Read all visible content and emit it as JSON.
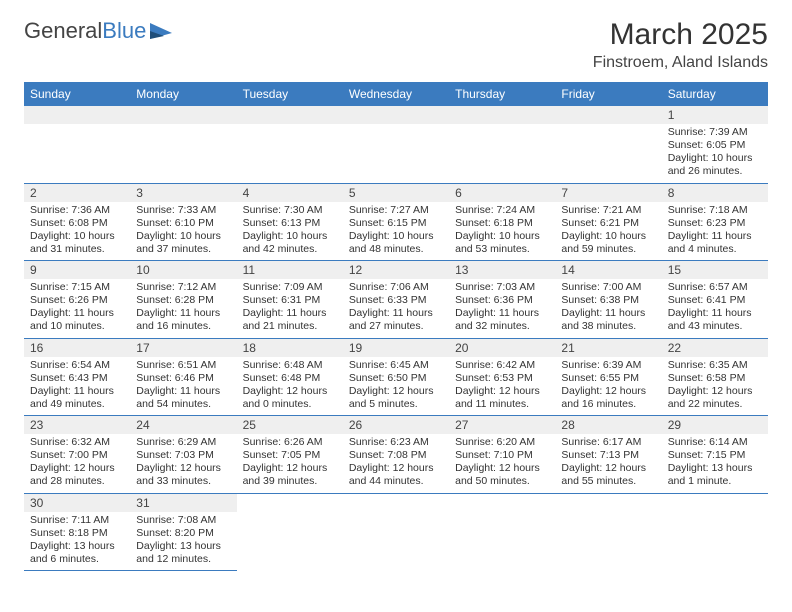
{
  "logo": {
    "text1": "General",
    "text2": "Blue"
  },
  "title": "March 2025",
  "location": "Finstroem, Aland Islands",
  "colors": {
    "accent": "#3b7bbf",
    "header_row_bg": "#efefef",
    "text": "#333333",
    "background": "#ffffff"
  },
  "weekdays": [
    "Sunday",
    "Monday",
    "Tuesday",
    "Wednesday",
    "Thursday",
    "Friday",
    "Saturday"
  ],
  "leading_blanks": 6,
  "days": [
    {
      "n": 1,
      "sunrise": "7:39 AM",
      "sunset": "6:05 PM",
      "daylight": "10 hours and 26 minutes."
    },
    {
      "n": 2,
      "sunrise": "7:36 AM",
      "sunset": "6:08 PM",
      "daylight": "10 hours and 31 minutes."
    },
    {
      "n": 3,
      "sunrise": "7:33 AM",
      "sunset": "6:10 PM",
      "daylight": "10 hours and 37 minutes."
    },
    {
      "n": 4,
      "sunrise": "7:30 AM",
      "sunset": "6:13 PM",
      "daylight": "10 hours and 42 minutes."
    },
    {
      "n": 5,
      "sunrise": "7:27 AM",
      "sunset": "6:15 PM",
      "daylight": "10 hours and 48 minutes."
    },
    {
      "n": 6,
      "sunrise": "7:24 AM",
      "sunset": "6:18 PM",
      "daylight": "10 hours and 53 minutes."
    },
    {
      "n": 7,
      "sunrise": "7:21 AM",
      "sunset": "6:21 PM",
      "daylight": "10 hours and 59 minutes."
    },
    {
      "n": 8,
      "sunrise": "7:18 AM",
      "sunset": "6:23 PM",
      "daylight": "11 hours and 4 minutes."
    },
    {
      "n": 9,
      "sunrise": "7:15 AM",
      "sunset": "6:26 PM",
      "daylight": "11 hours and 10 minutes."
    },
    {
      "n": 10,
      "sunrise": "7:12 AM",
      "sunset": "6:28 PM",
      "daylight": "11 hours and 16 minutes."
    },
    {
      "n": 11,
      "sunrise": "7:09 AM",
      "sunset": "6:31 PM",
      "daylight": "11 hours and 21 minutes."
    },
    {
      "n": 12,
      "sunrise": "7:06 AM",
      "sunset": "6:33 PM",
      "daylight": "11 hours and 27 minutes."
    },
    {
      "n": 13,
      "sunrise": "7:03 AM",
      "sunset": "6:36 PM",
      "daylight": "11 hours and 32 minutes."
    },
    {
      "n": 14,
      "sunrise": "7:00 AM",
      "sunset": "6:38 PM",
      "daylight": "11 hours and 38 minutes."
    },
    {
      "n": 15,
      "sunrise": "6:57 AM",
      "sunset": "6:41 PM",
      "daylight": "11 hours and 43 minutes."
    },
    {
      "n": 16,
      "sunrise": "6:54 AM",
      "sunset": "6:43 PM",
      "daylight": "11 hours and 49 minutes."
    },
    {
      "n": 17,
      "sunrise": "6:51 AM",
      "sunset": "6:46 PM",
      "daylight": "11 hours and 54 minutes."
    },
    {
      "n": 18,
      "sunrise": "6:48 AM",
      "sunset": "6:48 PM",
      "daylight": "12 hours and 0 minutes."
    },
    {
      "n": 19,
      "sunrise": "6:45 AM",
      "sunset": "6:50 PM",
      "daylight": "12 hours and 5 minutes."
    },
    {
      "n": 20,
      "sunrise": "6:42 AM",
      "sunset": "6:53 PM",
      "daylight": "12 hours and 11 minutes."
    },
    {
      "n": 21,
      "sunrise": "6:39 AM",
      "sunset": "6:55 PM",
      "daylight": "12 hours and 16 minutes."
    },
    {
      "n": 22,
      "sunrise": "6:35 AM",
      "sunset": "6:58 PM",
      "daylight": "12 hours and 22 minutes."
    },
    {
      "n": 23,
      "sunrise": "6:32 AM",
      "sunset": "7:00 PM",
      "daylight": "12 hours and 28 minutes."
    },
    {
      "n": 24,
      "sunrise": "6:29 AM",
      "sunset": "7:03 PM",
      "daylight": "12 hours and 33 minutes."
    },
    {
      "n": 25,
      "sunrise": "6:26 AM",
      "sunset": "7:05 PM",
      "daylight": "12 hours and 39 minutes."
    },
    {
      "n": 26,
      "sunrise": "6:23 AM",
      "sunset": "7:08 PM",
      "daylight": "12 hours and 44 minutes."
    },
    {
      "n": 27,
      "sunrise": "6:20 AM",
      "sunset": "7:10 PM",
      "daylight": "12 hours and 50 minutes."
    },
    {
      "n": 28,
      "sunrise": "6:17 AM",
      "sunset": "7:13 PM",
      "daylight": "12 hours and 55 minutes."
    },
    {
      "n": 29,
      "sunrise": "6:14 AM",
      "sunset": "7:15 PM",
      "daylight": "13 hours and 1 minute."
    },
    {
      "n": 30,
      "sunrise": "7:11 AM",
      "sunset": "8:18 PM",
      "daylight": "13 hours and 6 minutes."
    },
    {
      "n": 31,
      "sunrise": "7:08 AM",
      "sunset": "8:20 PM",
      "daylight": "13 hours and 12 minutes."
    }
  ],
  "labels": {
    "sunrise": "Sunrise:",
    "sunset": "Sunset:",
    "daylight": "Daylight:"
  }
}
